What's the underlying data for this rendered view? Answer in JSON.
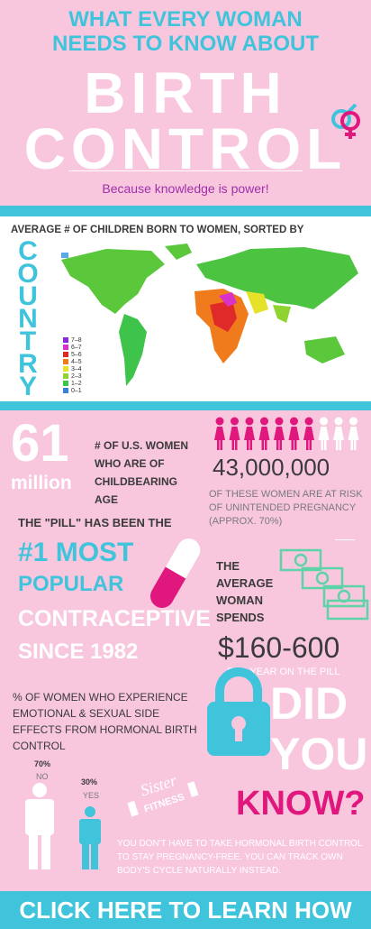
{
  "header": {
    "title_lines": [
      "WHAT EVERY WOMAN",
      "NEEDS TO KNOW ABOUT"
    ],
    "big_lines": [
      "BIRTH",
      "CONTROL"
    ],
    "subtitle": "Because knowledge is power!"
  },
  "map": {
    "heading": "AVERAGE # OF CHILDREN BORN TO WOMEN, SORTED BY",
    "side_word": "COUNTRY",
    "legend": [
      "7–8",
      "6–7",
      "5–6",
      "4–5",
      "3–4",
      "2–3",
      "1–2",
      "0–1"
    ]
  },
  "stats": {
    "women_number": "61",
    "women_unit": "million",
    "women_label": "# OF U.S. WOMEN WHO ARE OF CHILDBEARING AGE",
    "risk_number": "43,000,000",
    "risk_label": "OF THESE WOMEN ARE AT RISK OF UNINTENDED PREGNANCY (APPROX. 70%)",
    "pill_intro": "THE \"PILL\" HAS BEEN THE",
    "pill_lines": [
      "#1 MOST",
      "POPULAR",
      "CONTRACEPTIVE",
      "SINCE 1982"
    ],
    "spend_label": "THE AVERAGE WOMAN SPENDS",
    "spend_amount": "$160-600",
    "spend_unit": "PER YEAR ON THE PILL",
    "side_effects_label": "% OF WOMEN WHO EXPERIENCE EMOTIONAL & SEXUAL SIDE EFFECTS FROM HORMONAL BIRTH CONTROL",
    "no_percent": "70%",
    "no_label": "NO",
    "yes_percent": "30%",
    "yes_label": "YES"
  },
  "did_you_know": {
    "lines": [
      "DID",
      "YOU",
      "KNOW?"
    ],
    "text": "YOU DON'T HAVE TO TAKE HORMONAL BIRTH CONTROL TO STAY PREGNANCY-FREE. YOU CAN TRACK OWN BODY'S CYCLE NATURALLY INSTEAD."
  },
  "logo": {
    "script": "Sister",
    "word": "FITNESS"
  },
  "footer": {
    "cta": "CLICK HERE TO LEARN HOW"
  }
}
